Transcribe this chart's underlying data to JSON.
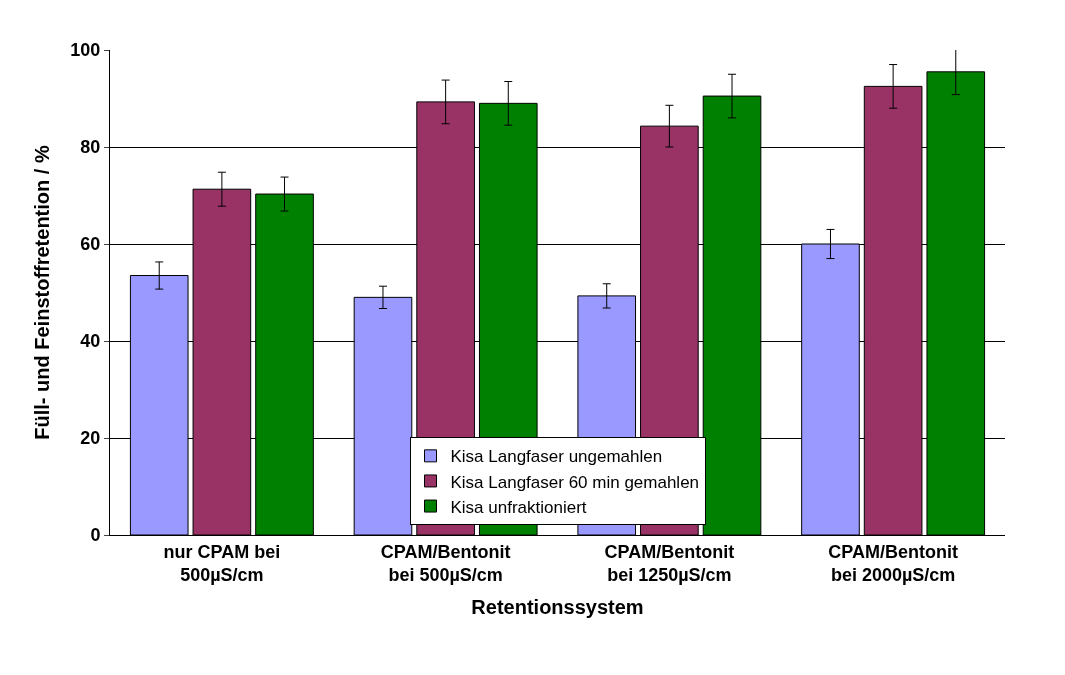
{
  "chart_data": {
    "type": "bar",
    "xlabel": "Retentionssystem",
    "ylabel": "Füll- und Feinstoffretention / %",
    "categories": [
      "nur CPAM bei\n500µS/cm",
      "CPAM/Bentonit\nbei 500µS/cm",
      "CPAM/Bentonit\nbei 1250µS/cm",
      "CPAM/Bentonit\nbei 2000µS/cm"
    ],
    "series": [
      {
        "name": "Kisa Langfaser ungemahlen",
        "color": "#9999ff",
        "values": [
          53.5,
          49.0,
          49.3,
          60.0
        ],
        "errors": [
          2.8,
          2.3,
          2.5,
          3.0
        ]
      },
      {
        "name": "Kisa Langfaser 60 min gemahlen",
        "color": "#993366",
        "values": [
          71.3,
          89.3,
          84.3,
          92.5
        ],
        "errors": [
          3.5,
          4.5,
          4.3,
          4.5
        ]
      },
      {
        "name": "Kisa unfraktioniert",
        "color": "#008000",
        "values": [
          70.3,
          89.0,
          90.5,
          95.5
        ],
        "errors": [
          3.5,
          4.5,
          4.5,
          4.7
        ]
      }
    ],
    "ylim": [
      0,
      100
    ],
    "yticks": [
      0,
      20,
      40,
      60,
      80,
      100
    ],
    "grid": "y",
    "legend": "bottom"
  }
}
